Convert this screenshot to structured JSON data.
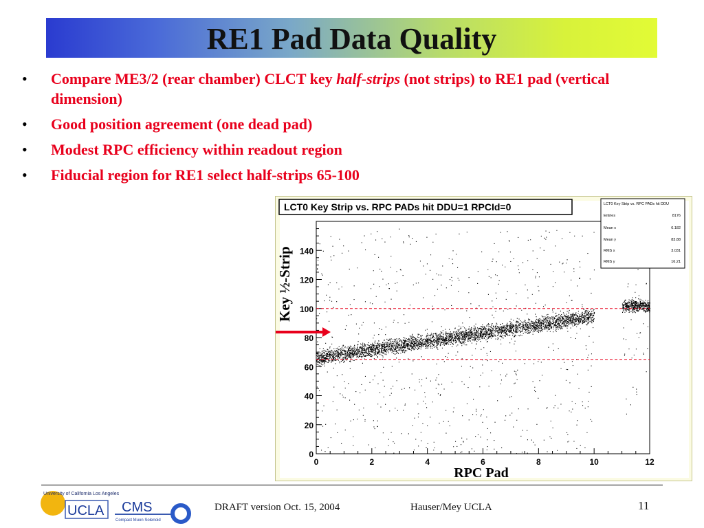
{
  "slide": {
    "title": "RE1 Pad Data Quality",
    "bullets": [
      {
        "prefix": "Compare ME3/2 (rear chamber) CLCT key ",
        "emph": "half-strips",
        "suffix": " (not strips) to RE1 pad (vertical dimension)"
      },
      {
        "text": "Good position agreement (one dead pad)"
      },
      {
        "text": "Modest RPC efficiency within readout region"
      },
      {
        "text": "Fiducial region for RE1 select half-strips 65-100"
      }
    ],
    "bullet_glyph": "•",
    "ylabel": "Key ½-Strip",
    "xlabel": "RPC Pad",
    "footer": {
      "draft": "DRAFT version Oct. 15, 2004",
      "author": "Hauser/Mey UCLA",
      "page": "11"
    },
    "logo": {
      "university": "University of California Los Angeles",
      "ucla": "UCLA",
      "cms": "CMS",
      "cms_sub": "Compact Muon Solenoid"
    }
  },
  "chart_data": {
    "type": "scatter",
    "title": "LCT0 Key Strip vs. RPC PADs hit DDU=1 RPCId=0",
    "xlim": [
      0,
      12
    ],
    "ylim": [
      0,
      160
    ],
    "xticks": [
      0,
      2,
      4,
      6,
      8,
      10,
      12
    ],
    "yticks": [
      0,
      20,
      40,
      60,
      80,
      100,
      120,
      140
    ],
    "band": {
      "x_start": 0,
      "x_end": 10,
      "y_start": 66,
      "y_end": 95,
      "x_dead_start": 10,
      "x_dead_end": 11,
      "x2_start": 11,
      "x2_end": 12,
      "y2": 102
    },
    "fiducial_lines": [
      65,
      100
    ],
    "stats": {
      "name": "Key Strip vs. RPC PADs hit DDU=1 RPCId=0",
      "header": "LCT0 Key Strip vs. RPC PADs hit DDU",
      "rows": [
        {
          "label": "Entries",
          "value": "8176"
        },
        {
          "label": "Mean x",
          "value": "6.182"
        },
        {
          "label": "Mean y",
          "value": "83.88"
        },
        {
          "label": "RMS x",
          "value": "3.031"
        },
        {
          "label": "RMS y",
          "value": "16.21"
        }
      ]
    },
    "colors": {
      "points": "#000000",
      "fiducial": "#e8001c",
      "arrow": "#e8001c"
    }
  }
}
